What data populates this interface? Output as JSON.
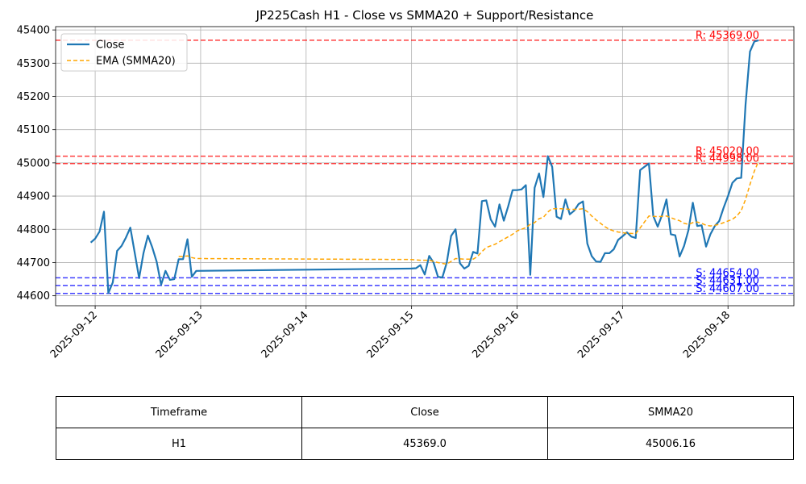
{
  "chart_data": {
    "type": "line",
    "title": "JP225Cash H1 - Close vs SMMA20 + Support/Resistance",
    "xlabel": "",
    "ylabel": "",
    "ylim": [
      44570,
      45410
    ],
    "xlim": [
      "2025-09-11 15:00",
      "2025-09-18 15:00"
    ],
    "x_ticks": [
      "2025-09-12",
      "2025-09-13",
      "2025-09-14",
      "2025-09-15",
      "2025-09-16",
      "2025-09-17",
      "2025-09-18"
    ],
    "y_ticks": [
      44600,
      44700,
      44800,
      44900,
      45000,
      45100,
      45200,
      45300,
      45400
    ],
    "grid": true,
    "legend": {
      "position": "top-left",
      "entries": [
        "Close",
        "EMA (SMMA20)"
      ]
    },
    "series": [
      {
        "name": "Close",
        "color": "#1f77b4",
        "style": "solid",
        "points": [
          [
            "2025-09-11 23:00",
            44760
          ],
          [
            "2025-09-12 00:00",
            44772
          ],
          [
            "2025-09-12 01:00",
            44793
          ],
          [
            "2025-09-12 02:00",
            44853
          ],
          [
            "2025-09-12 03:00",
            44608
          ],
          [
            "2025-09-12 04:00",
            44640
          ],
          [
            "2025-09-12 05:00",
            44735
          ],
          [
            "2025-09-12 06:00",
            44750
          ],
          [
            "2025-09-12 07:00",
            44775
          ],
          [
            "2025-09-12 08:00",
            44805
          ],
          [
            "2025-09-12 09:00",
            44730
          ],
          [
            "2025-09-12 10:00",
            44653
          ],
          [
            "2025-09-12 11:00",
            44728
          ],
          [
            "2025-09-12 12:00",
            44781
          ],
          [
            "2025-09-12 13:00",
            44745
          ],
          [
            "2025-09-12 14:00",
            44702
          ],
          [
            "2025-09-12 15:00",
            44633
          ],
          [
            "2025-09-12 16:00",
            44675
          ],
          [
            "2025-09-12 17:00",
            44648
          ],
          [
            "2025-09-12 18:00",
            44650
          ],
          [
            "2025-09-12 19:00",
            44710
          ],
          [
            "2025-09-12 20:00",
            44710
          ],
          [
            "2025-09-12 21:00",
            44770
          ],
          [
            "2025-09-12 22:00",
            44657
          ],
          [
            "2025-09-12 23:00",
            44675
          ],
          [
            "2025-09-15 00:00",
            44682
          ],
          [
            "2025-09-15 01:00",
            44683
          ],
          [
            "2025-09-15 02:00",
            44692
          ],
          [
            "2025-09-15 03:00",
            44664
          ],
          [
            "2025-09-15 04:00",
            44720
          ],
          [
            "2025-09-15 05:00",
            44700
          ],
          [
            "2025-09-15 06:00",
            44657
          ],
          [
            "2025-09-15 07:00",
            44655
          ],
          [
            "2025-09-15 08:00",
            44700
          ],
          [
            "2025-09-15 09:00",
            44780
          ],
          [
            "2025-09-15 10:00",
            44800
          ],
          [
            "2025-09-15 11:00",
            44698
          ],
          [
            "2025-09-15 12:00",
            44682
          ],
          [
            "2025-09-15 13:00",
            44690
          ],
          [
            "2025-09-15 14:00",
            44732
          ],
          [
            "2025-09-15 15:00",
            44727
          ],
          [
            "2025-09-15 16:00",
            44885
          ],
          [
            "2025-09-15 17:00",
            44887
          ],
          [
            "2025-09-15 18:00",
            44830
          ],
          [
            "2025-09-15 19:00",
            44808
          ],
          [
            "2025-09-15 20:00",
            44875
          ],
          [
            "2025-09-15 21:00",
            44826
          ],
          [
            "2025-09-15 22:00",
            44870
          ],
          [
            "2025-09-15 23:00",
            44918
          ],
          [
            "2025-09-16 00:00",
            44918
          ],
          [
            "2025-09-16 01:00",
            44920
          ],
          [
            "2025-09-16 02:00",
            44933
          ],
          [
            "2025-09-16 03:00",
            44663
          ],
          [
            "2025-09-16 04:00",
            44925
          ],
          [
            "2025-09-16 05:00",
            44968
          ],
          [
            "2025-09-16 06:00",
            44897
          ],
          [
            "2025-09-16 07:00",
            45020
          ],
          [
            "2025-09-16 08:00",
            44988
          ],
          [
            "2025-09-16 09:00",
            44838
          ],
          [
            "2025-09-16 10:00",
            44831
          ],
          [
            "2025-09-16 11:00",
            44890
          ],
          [
            "2025-09-16 12:00",
            44845
          ],
          [
            "2025-09-16 13:00",
            44856
          ],
          [
            "2025-09-16 14:00",
            44876
          ],
          [
            "2025-09-16 15:00",
            44884
          ],
          [
            "2025-09-16 16:00",
            44757
          ],
          [
            "2025-09-16 17:00",
            44719
          ],
          [
            "2025-09-16 18:00",
            44703
          ],
          [
            "2025-09-16 19:00",
            44702
          ],
          [
            "2025-09-16 20:00",
            44728
          ],
          [
            "2025-09-16 21:00",
            44728
          ],
          [
            "2025-09-16 22:00",
            44740
          ],
          [
            "2025-09-16 23:00",
            44768
          ],
          [
            "2025-09-17 00:00",
            44779
          ],
          [
            "2025-09-17 01:00",
            44791
          ],
          [
            "2025-09-17 02:00",
            44778
          ],
          [
            "2025-09-17 03:00",
            44774
          ],
          [
            "2025-09-17 04:00",
            44978
          ],
          [
            "2025-09-17 05:00",
            44988
          ],
          [
            "2025-09-17 06:00",
            44998
          ],
          [
            "2025-09-17 07:00",
            44840
          ],
          [
            "2025-09-17 08:00",
            44808
          ],
          [
            "2025-09-17 09:00",
            44843
          ],
          [
            "2025-09-17 10:00",
            44890
          ],
          [
            "2025-09-17 11:00",
            44785
          ],
          [
            "2025-09-17 12:00",
            44782
          ],
          [
            "2025-09-17 13:00",
            44718
          ],
          [
            "2025-09-17 14:00",
            44750
          ],
          [
            "2025-09-17 15:00",
            44797
          ],
          [
            "2025-09-17 16:00",
            44880
          ],
          [
            "2025-09-17 17:00",
            44810
          ],
          [
            "2025-09-17 18:00",
            44812
          ],
          [
            "2025-09-17 19:00",
            44748
          ],
          [
            "2025-09-17 20:00",
            44785
          ],
          [
            "2025-09-17 21:00",
            44810
          ],
          [
            "2025-09-17 22:00",
            44825
          ],
          [
            "2025-09-17 23:00",
            44865
          ],
          [
            "2025-09-18 00:00",
            44900
          ],
          [
            "2025-09-18 01:00",
            44940
          ],
          [
            "2025-09-18 02:00",
            44953
          ],
          [
            "2025-09-18 03:00",
            44955
          ],
          [
            "2025-09-18 04:00",
            45175
          ],
          [
            "2025-09-18 05:00",
            45335
          ],
          [
            "2025-09-18 06:00",
            45365
          ],
          [
            "2025-09-18 07:00",
            45369
          ]
        ]
      },
      {
        "name": "EMA (SMMA20)",
        "color": "#ffa500",
        "style": "dashed",
        "points": [
          [
            "2025-09-12 19:00",
            44718
          ],
          [
            "2025-09-12 20:00",
            44718
          ],
          [
            "2025-09-12 21:00",
            44720
          ],
          [
            "2025-09-12 22:00",
            44715
          ],
          [
            "2025-09-12 23:00",
            44712
          ],
          [
            "2025-09-15 00:00",
            44709
          ],
          [
            "2025-09-15 02:00",
            44707
          ],
          [
            "2025-09-15 04:00",
            44707
          ],
          [
            "2025-09-15 06:00",
            44700
          ],
          [
            "2025-09-15 08:00",
            44695
          ],
          [
            "2025-09-15 10:00",
            44712
          ],
          [
            "2025-09-15 12:00",
            44710
          ],
          [
            "2025-09-15 14:00",
            44710
          ],
          [
            "2025-09-15 15:00",
            44718
          ],
          [
            "2025-09-15 16:00",
            44733
          ],
          [
            "2025-09-15 17:00",
            44745
          ],
          [
            "2025-09-15 19:00",
            44755
          ],
          [
            "2025-09-15 21:00",
            44770
          ],
          [
            "2025-09-15 23:00",
            44785
          ],
          [
            "2025-09-16 00:00",
            44795
          ],
          [
            "2025-09-16 02:00",
            44805
          ],
          [
            "2025-09-16 03:00",
            44815
          ],
          [
            "2025-09-16 04:00",
            44820
          ],
          [
            "2025-09-16 05:00",
            44832
          ],
          [
            "2025-09-16 06:00",
            44836
          ],
          [
            "2025-09-16 07:00",
            44852
          ],
          [
            "2025-09-16 08:00",
            44862
          ],
          [
            "2025-09-16 10:00",
            44862
          ],
          [
            "2025-09-16 12:00",
            44860
          ],
          [
            "2025-09-16 14:00",
            44860
          ],
          [
            "2025-09-16 15:00",
            44862
          ],
          [
            "2025-09-16 16:00",
            44853
          ],
          [
            "2025-09-16 17:00",
            44840
          ],
          [
            "2025-09-16 18:00",
            44828
          ],
          [
            "2025-09-16 19:00",
            44818
          ],
          [
            "2025-09-16 20:00",
            44808
          ],
          [
            "2025-09-16 21:00",
            44800
          ],
          [
            "2025-09-16 22:00",
            44795
          ],
          [
            "2025-09-16 23:00",
            44792
          ],
          [
            "2025-09-17 00:00",
            44790
          ],
          [
            "2025-09-17 01:00",
            44788
          ],
          [
            "2025-09-17 03:00",
            44787
          ],
          [
            "2025-09-17 04:00",
            44804
          ],
          [
            "2025-09-17 05:00",
            44822
          ],
          [
            "2025-09-17 06:00",
            44840
          ],
          [
            "2025-09-17 08:00",
            44838
          ],
          [
            "2025-09-17 10:00",
            44840
          ],
          [
            "2025-09-17 12:00",
            44830
          ],
          [
            "2025-09-17 13:00",
            44826
          ],
          [
            "2025-09-17 14:00",
            44818
          ],
          [
            "2025-09-17 15:00",
            44815
          ],
          [
            "2025-09-17 16:00",
            44820
          ],
          [
            "2025-09-17 17:00",
            44822
          ],
          [
            "2025-09-17 18:00",
            44818
          ],
          [
            "2025-09-17 19:00",
            44812
          ],
          [
            "2025-09-17 20:00",
            44810
          ],
          [
            "2025-09-17 21:00",
            44812
          ],
          [
            "2025-09-17 22:00",
            44815
          ],
          [
            "2025-09-17 23:00",
            44820
          ],
          [
            "2025-09-18 00:00",
            44825
          ],
          [
            "2025-09-18 01:00",
            44830
          ],
          [
            "2025-09-18 02:00",
            44840
          ],
          [
            "2025-09-18 03:00",
            44856
          ],
          [
            "2025-09-18 04:00",
            44890
          ],
          [
            "2025-09-18 05:00",
            44935
          ],
          [
            "2025-09-18 06:00",
            44975
          ],
          [
            "2025-09-18 07:00",
            45006
          ]
        ]
      }
    ],
    "levels": [
      {
        "kind": "resistance",
        "label": "R: 45369.00",
        "value": 45369,
        "color": "#ff0000"
      },
      {
        "kind": "resistance",
        "label": "R: 45020.00",
        "value": 45020,
        "color": "#ff0000"
      },
      {
        "kind": "resistance",
        "label": "R: 44998.00",
        "value": 44998,
        "color": "#ff0000"
      },
      {
        "kind": "support",
        "label": "S: 44654.00",
        "value": 44654,
        "color": "#0000ff"
      },
      {
        "kind": "support",
        "label": "S: 44631.00",
        "value": 44631,
        "color": "#0000ff"
      },
      {
        "kind": "support",
        "label": "S: 44607.00",
        "value": 44607,
        "color": "#0000ff"
      }
    ]
  },
  "table": {
    "headers": [
      "Timeframe",
      "Close",
      "SMMA20"
    ],
    "row": [
      "H1",
      "45369.0",
      "45006.16"
    ]
  }
}
